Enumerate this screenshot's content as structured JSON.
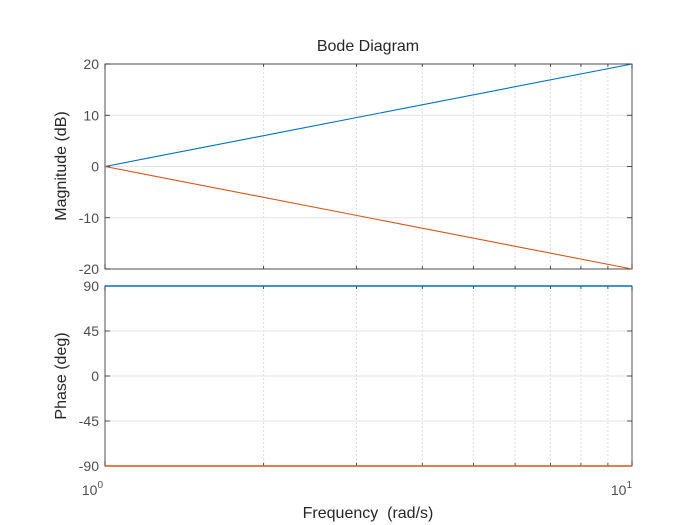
{
  "chart_data": {
    "type": "line",
    "title": "Bode Diagram",
    "xlabel": "Frequency  (rad/s)",
    "x_scale": "log",
    "xlim": [
      1,
      10
    ],
    "x_ticks": [
      {
        "base": "10",
        "exp": "0",
        "value": 1
      },
      {
        "base": "10",
        "exp": "1",
        "value": 10
      }
    ],
    "grid": true,
    "colors": [
      "#0072bd",
      "#d95319"
    ],
    "panels": [
      {
        "ylabel": "Magnitude (dB)",
        "ylim": [
          -20,
          20
        ],
        "yticks": [
          {
            "value": 20,
            "label": "20"
          },
          {
            "value": 10,
            "label": "10"
          },
          {
            "value": 0,
            "label": "0"
          },
          {
            "value": -10,
            "label": "-10"
          },
          {
            "value": -20,
            "label": "-20"
          }
        ],
        "series": [
          {
            "x": [
              1,
              10
            ],
            "y": [
              0,
              20
            ]
          },
          {
            "x": [
              1,
              10
            ],
            "y": [
              0,
              -20
            ]
          }
        ]
      },
      {
        "ylabel": "Phase (deg)",
        "ylim": [
          -90,
          90
        ],
        "yticks": [
          {
            "value": 90,
            "label": "90"
          },
          {
            "value": 45,
            "label": "45"
          },
          {
            "value": 0,
            "label": "0"
          },
          {
            "value": -45,
            "label": "-45"
          },
          {
            "value": -90,
            "label": "-90"
          }
        ],
        "series": [
          {
            "x": [
              1,
              10
            ],
            "y": [
              90,
              90
            ]
          },
          {
            "x": [
              1,
              10
            ],
            "y": [
              -90,
              -90
            ]
          }
        ]
      }
    ]
  }
}
